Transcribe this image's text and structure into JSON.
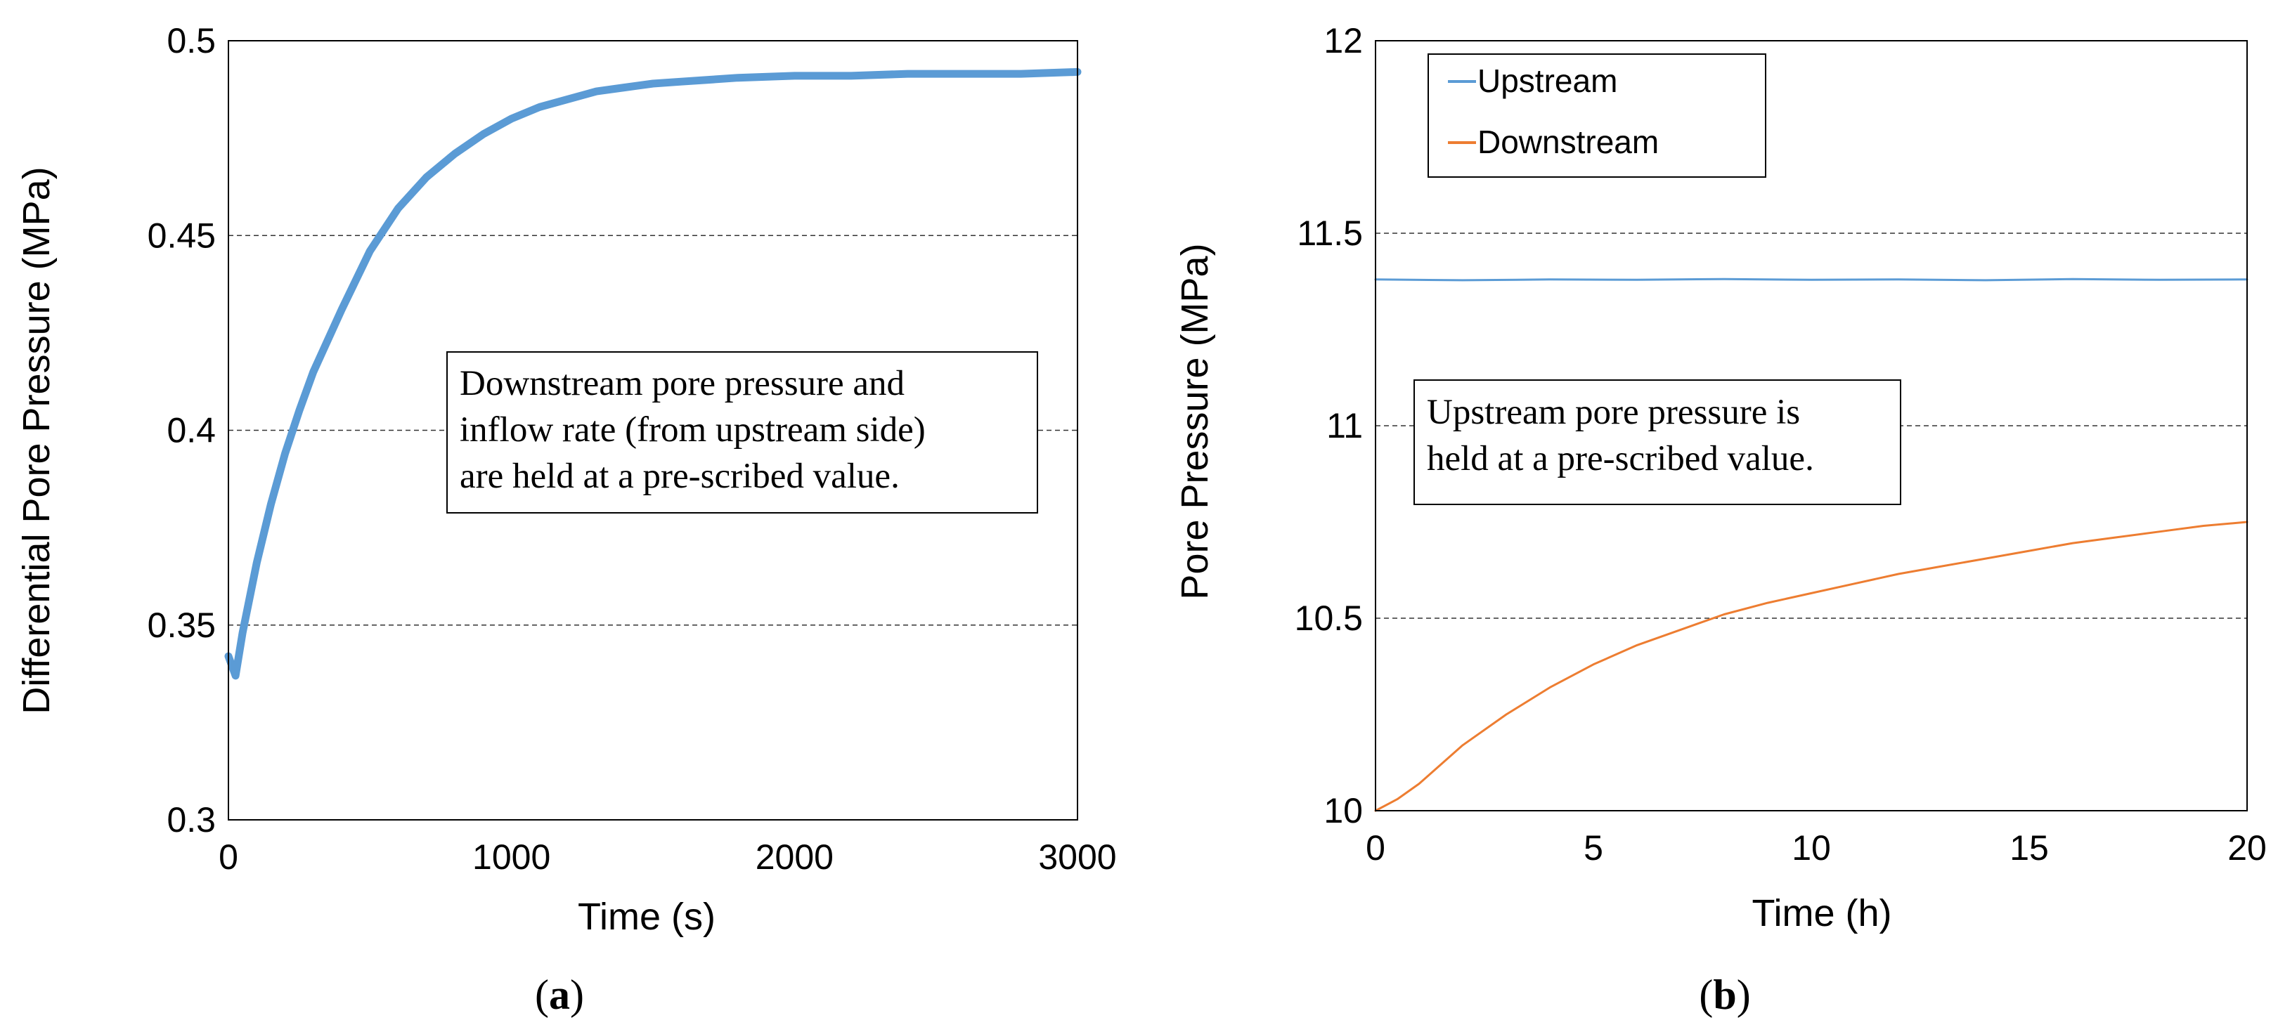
{
  "chart_data": [
    {
      "panel": "a",
      "type": "line",
      "title": "",
      "xlabel": "Time (s)",
      "ylabel": "Differential Pore Pressure (MPa)",
      "xlim": [
        0,
        3000
      ],
      "ylim": [
        0.3,
        0.5
      ],
      "xticks": [
        "0",
        "1000",
        "2000",
        "3000"
      ],
      "xtick_values": [
        0,
        1000,
        2000,
        3000
      ],
      "yticks": [
        "0.3",
        "0.35",
        "0.4",
        "0.45",
        "0.5"
      ],
      "ytick_values": [
        0.3,
        0.35,
        0.4,
        0.45,
        0.5
      ],
      "grid": "horizontal dashed",
      "series": [
        {
          "name": "Differential pore pressure",
          "color": "#5b9bd5",
          "x": [
            0,
            25,
            50,
            100,
            150,
            200,
            250,
            300,
            400,
            500,
            600,
            700,
            800,
            900,
            1000,
            1100,
            1200,
            1300,
            1400,
            1500,
            1600,
            1700,
            1800,
            2000,
            2200,
            2400,
            2600,
            2800,
            3000
          ],
          "y": [
            0.342,
            0.337,
            0.348,
            0.366,
            0.381,
            0.394,
            0.405,
            0.415,
            0.431,
            0.446,
            0.457,
            0.465,
            0.471,
            0.476,
            0.48,
            0.483,
            0.485,
            0.487,
            0.488,
            0.489,
            0.4895,
            0.49,
            0.4905,
            0.491,
            0.491,
            0.4915,
            0.4915,
            0.4915,
            0.492
          ]
        }
      ],
      "annotation": [
        "Downstream pore pressure and",
        "inflow rate (from upstream side)",
        "are held at a pre-scribed value."
      ],
      "label_paren_open": "(",
      "label_letter": "a",
      "label_paren_close": ")"
    },
    {
      "panel": "b",
      "type": "line",
      "title": "",
      "xlabel": "Time (h)",
      "ylabel": "Pore Pressure (MPa)",
      "xlim": [
        0,
        20
      ],
      "ylim": [
        10,
        12
      ],
      "xticks": [
        "0",
        "5",
        "10",
        "15",
        "20"
      ],
      "xtick_values": [
        0,
        5,
        10,
        15,
        20
      ],
      "yticks": [
        "10",
        "10.5",
        "11",
        "11.5",
        "12"
      ],
      "ytick_values": [
        10,
        10.5,
        11,
        11.5,
        12
      ],
      "grid": "horizontal dashed",
      "legend_position": "top-left",
      "series": [
        {
          "name": "Upstream",
          "color": "#5b9bd5",
          "x": [
            0,
            2,
            4,
            6,
            8,
            10,
            12,
            14,
            16,
            18,
            20
          ],
          "y": [
            11.38,
            11.378,
            11.38,
            11.379,
            11.381,
            11.379,
            11.38,
            11.378,
            11.381,
            11.379,
            11.38
          ]
        },
        {
          "name": "Downstream",
          "color": "#ed7d31",
          "x": [
            0,
            0.5,
            1,
            2,
            3,
            4,
            5,
            6,
            7,
            8,
            9,
            10,
            11,
            12,
            13,
            14,
            15,
            16,
            17,
            18,
            19,
            20
          ],
          "y": [
            10.0,
            10.03,
            10.07,
            10.17,
            10.25,
            10.32,
            10.38,
            10.43,
            10.47,
            10.51,
            10.54,
            10.565,
            10.59,
            10.615,
            10.635,
            10.655,
            10.675,
            10.695,
            10.71,
            10.725,
            10.74,
            10.75
          ]
        }
      ],
      "annotation": [
        "Upstream pore pressure is",
        "held at a pre-scribed value."
      ],
      "label_paren_open": "(",
      "label_letter": "b",
      "label_paren_close": ")"
    }
  ]
}
